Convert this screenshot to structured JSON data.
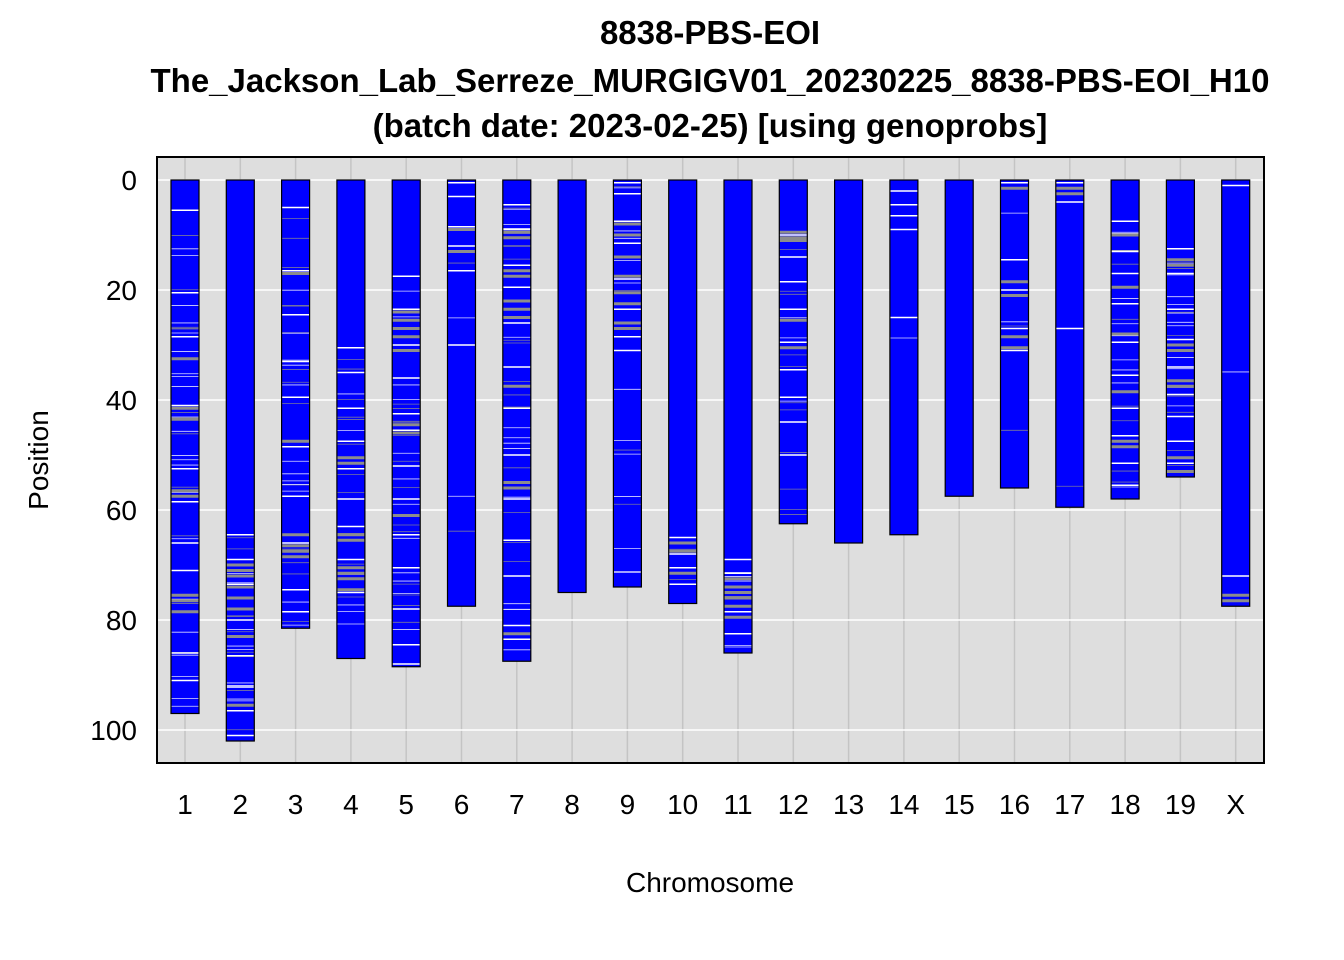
{
  "chart_data": {
    "type": "chromosome-ideogram",
    "title_lines": [
      "8838-PBS-EOI",
      "The_Jackson_Lab_Serreze_MURGIGV01_20230225_8838-PBS-EOI_H10",
      "(batch date: 2023-02-25) [using genoprobs]"
    ],
    "xlabel": "Chromosome",
    "ylabel": "Position",
    "ylim": [
      0,
      105
    ],
    "y_reversed": true,
    "yticks": [
      0,
      20,
      40,
      60,
      80,
      100
    ],
    "grid": true,
    "colors": {
      "panel_bg": "#dedede",
      "grid": "#ffffff",
      "chromosome_fill": "#0000ff",
      "chromosome_border": "#000000",
      "marker_white": "#ffffff",
      "marker_gray": "#8c8c8c"
    },
    "chromosomes": [
      {
        "name": "1",
        "length": 97,
        "white": [
          5.5,
          20.5,
          28.5,
          41,
          52.5,
          58.5,
          66,
          71,
          86,
          91
        ],
        "gray": [
          32.5,
          41.5,
          43.5,
          56.5,
          57.5,
          75.5,
          76.5,
          78.5
        ],
        "thin": 34
      },
      {
        "name": "2",
        "length": 102,
        "white": [
          64.5,
          69,
          73.5,
          80,
          86.5,
          92,
          96.5,
          101
        ],
        "gray": [
          70,
          71,
          72,
          74,
          76,
          78,
          83,
          95.5
        ],
        "thin": 18
      },
      {
        "name": "3",
        "length": 81.5,
        "white": [
          5,
          16.5,
          24.5,
          33,
          39.5,
          48.5,
          57.5,
          66,
          74.5,
          78.5
        ],
        "gray": [
          17,
          47.5,
          64.5,
          66.5,
          67.5,
          68.5
        ],
        "thin": 28
      },
      {
        "name": "4",
        "length": 87,
        "white": [
          30.5,
          35,
          41.5,
          47.5,
          52.5,
          58,
          63,
          69,
          75
        ],
        "gray": [
          50.5,
          51.5,
          64.5,
          65.5,
          70.5,
          71.5,
          72.5,
          74.5
        ],
        "thin": 20
      },
      {
        "name": "5",
        "length": 88.5,
        "white": [
          17.5,
          23.5,
          30,
          36,
          42.5,
          45.5,
          52,
          58,
          64.5,
          70.5,
          78,
          84.5,
          88
        ],
        "gray": [
          24,
          25.5,
          27,
          28.5,
          31,
          44.5,
          46,
          61
        ],
        "thin": 26
      },
      {
        "name": "6",
        "length": 77.5,
        "white": [
          0.5,
          3,
          8.5,
          12,
          16.5,
          30
        ],
        "gray": [
          9,
          13
        ],
        "thin": 4
      },
      {
        "name": "7",
        "length": 87.5,
        "white": [
          4.5,
          9,
          15.5,
          19.5,
          26,
          34,
          41.5,
          50,
          58,
          65.5,
          72,
          81,
          83.5
        ],
        "gray": [
          9.5,
          10.5,
          16.5,
          17.5,
          22,
          23.5,
          25,
          37.5,
          55,
          56,
          82.5
        ],
        "thin": 30
      },
      {
        "name": "8",
        "length": 75,
        "white": [],
        "gray": [],
        "thin": 0
      },
      {
        "name": "9",
        "length": 74,
        "white": [
          0.5,
          2.5,
          7.5,
          11.5,
          18,
          23.5,
          28.5,
          31
        ],
        "gray": [
          8,
          10,
          14,
          17.5,
          20.5,
          22.5,
          26,
          27
        ],
        "thin": 16
      },
      {
        "name": "10",
        "length": 77,
        "white": [
          65,
          68,
          70.5,
          73.5
        ],
        "gray": [
          66,
          67.5,
          71.5
        ],
        "thin": 5
      },
      {
        "name": "11",
        "length": 86,
        "white": [
          69,
          71.5,
          78.5,
          82.5
        ],
        "gray": [
          72.5,
          74,
          75,
          76,
          77.5,
          79.5
        ],
        "thin": 7
      },
      {
        "name": "12",
        "length": 62.5,
        "white": [
          10,
          14,
          18.5,
          23.5,
          29.5,
          34.5,
          39.5,
          44,
          50
        ],
        "gray": [
          9.5,
          10.5,
          11,
          25.5,
          30.5
        ],
        "thin": 14
      },
      {
        "name": "13",
        "length": 66,
        "white": [],
        "gray": [],
        "thin": 0
      },
      {
        "name": "14",
        "length": 64.5,
        "white": [
          2,
          4.5,
          6.5,
          9,
          25
        ],
        "gray": [],
        "thin": 1
      },
      {
        "name": "15",
        "length": 57.5,
        "white": [],
        "gray": [],
        "thin": 0
      },
      {
        "name": "16",
        "length": 56,
        "white": [
          0.5,
          14.5,
          20,
          27,
          31
        ],
        "gray": [
          1.5,
          18.5,
          21,
          28.5,
          30.5
        ],
        "thin": 4
      },
      {
        "name": "17",
        "length": 59.5,
        "white": [
          0.5,
          4,
          27
        ],
        "gray": [
          1.5,
          2.5
        ],
        "thin": 1
      },
      {
        "name": "18",
        "length": 58,
        "white": [
          7.5,
          13,
          17,
          22.5,
          29.5,
          35.5,
          41.5,
          46.5,
          51.5,
          55.5
        ],
        "gray": [
          10,
          19.5,
          28,
          38.5,
          47.5,
          48.5
        ],
        "thin": 18
      },
      {
        "name": "19",
        "length": 54,
        "white": [
          12.5,
          17,
          23.5,
          29,
          34,
          39,
          43,
          47.5,
          51.5
        ],
        "gray": [
          14.5,
          15.5,
          30,
          31,
          36.5,
          37.5,
          50.5,
          53
        ],
        "thin": 22
      },
      {
        "name": "X",
        "length": 77.5,
        "white": [
          1,
          72
        ],
        "gray": [
          75.5,
          76.5
        ],
        "thin": 1
      }
    ]
  }
}
